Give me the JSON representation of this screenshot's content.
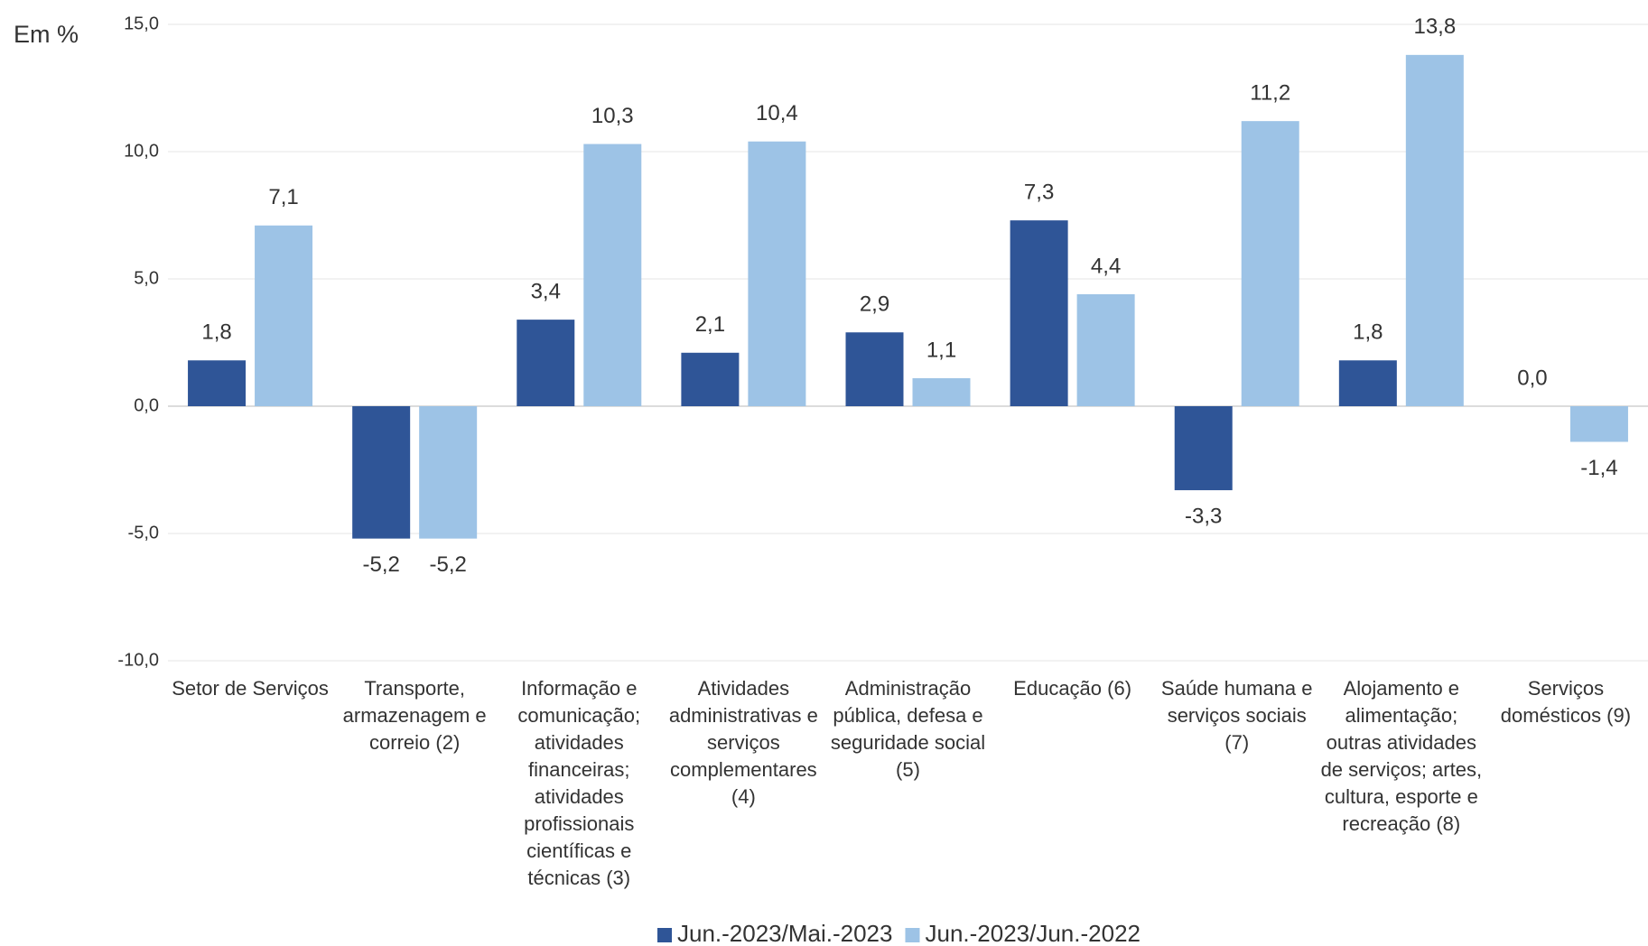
{
  "chart_data": {
    "type": "bar",
    "y_label": "Em %",
    "categories": [
      "Setor de Serviços",
      "Transporte, armazenagem e correio (2)",
      "Informação e comunicação; atividades financeiras; atividades profissionais científicas e técnicas (3)",
      "Atividades administrativas e serviços complementares (4)",
      "Administração pública, defesa e seguridade social (5)",
      "Educação (6)",
      "Saúde humana e serviços sociais (7)",
      "Alojamento e alimentação; outras atividades de serviços; artes, cultura, esporte e recreação (8)",
      "Serviços domésticos (9)"
    ],
    "series": [
      {
        "name": "Jun.-2023/Mai.-2023",
        "color": "#2f5597",
        "values": [
          1.8,
          -5.2,
          3.4,
          2.1,
          2.9,
          7.3,
          -3.3,
          1.8,
          0.0
        ],
        "value_labels": [
          "1,8",
          "-5,2",
          "3,4",
          "2,1",
          "2,9",
          "7,3",
          "-3,3",
          "1,8",
          "0,0"
        ]
      },
      {
        "name": "Jun.-2023/Jun.-2022",
        "color": "#9dc3e6",
        "values": [
          7.1,
          -5.2,
          10.3,
          10.4,
          1.1,
          4.4,
          11.2,
          13.8,
          -1.4
        ],
        "value_labels": [
          "7,1",
          "-5,2",
          "10,3",
          "10,4",
          "1,1",
          "4,4",
          "11,2",
          "13,8",
          "-1,4"
        ]
      }
    ],
    "ylim": [
      -10,
      15
    ],
    "yticks": [
      {
        "value": -10,
        "label": "-10,0"
      },
      {
        "value": -5,
        "label": "-5,0"
      },
      {
        "value": 0,
        "label": "0,0"
      },
      {
        "value": 5,
        "label": "5,0"
      },
      {
        "value": 10,
        "label": "10,0"
      },
      {
        "value": 15,
        "label": "15,0"
      }
    ],
    "grid": true,
    "legend": "bottom"
  }
}
